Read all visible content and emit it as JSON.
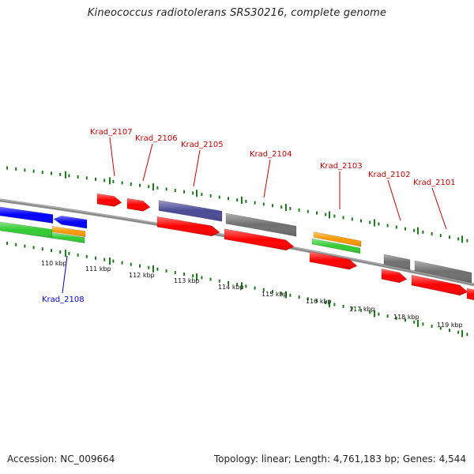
{
  "title": "Kineococcus radiotolerans SRS30216, complete genome",
  "footer": {
    "accession": "Accession: NC_009664",
    "summary": "Topology: linear; Length: 4,761,183 bp; Genes: 4,544"
  },
  "colors": {
    "backbone": "#8a8a8a",
    "tick": "#1f7a1f",
    "label_forward": "#cc0000",
    "label_reverse": "#0000cc",
    "red": "#ff0000",
    "gray": "#6f6f6f",
    "purple": "#4a4a96",
    "blue": "#0000ff",
    "green": "#33cc33",
    "orange": "#ff9900"
  },
  "ticks": [
    {
      "label": "110 kbp",
      "pos": 110
    },
    {
      "label": "111 kbp",
      "pos": 111
    },
    {
      "label": "112 kbp",
      "pos": 112
    },
    {
      "label": "113 kbp",
      "pos": 113
    },
    {
      "label": "114 kbp",
      "pos": 114
    },
    {
      "label": "115 kbp",
      "pos": 115
    },
    {
      "label": "116 kbp",
      "pos": 116
    },
    {
      "label": "117 kbp",
      "pos": 117
    },
    {
      "label": "118 kbp",
      "pos": 118
    },
    {
      "label": "119 kbp",
      "pos": 119
    }
  ],
  "genes": [
    {
      "name": "Krad_2108",
      "strand": "-",
      "color": "blue",
      "labeled": true
    },
    {
      "name": "Krad_2107",
      "strand": "+",
      "color": "red",
      "labeled": true
    },
    {
      "name": "Krad_2106",
      "strand": "+",
      "color": "red",
      "labeled": true
    },
    {
      "name": "Krad_2105",
      "strand": "+",
      "color": "purple",
      "labeled": true
    },
    {
      "name": "Krad_2104",
      "strand": "+",
      "color": "gray",
      "labeled": true
    },
    {
      "name": "Krad_2103",
      "strand": "+",
      "color": "orange",
      "labeled": true
    },
    {
      "name": "Krad_2102",
      "strand": "+",
      "color": "gray",
      "labeled": true
    },
    {
      "name": "Krad_2101",
      "strand": "+",
      "color": "gray",
      "labeled": true
    }
  ]
}
